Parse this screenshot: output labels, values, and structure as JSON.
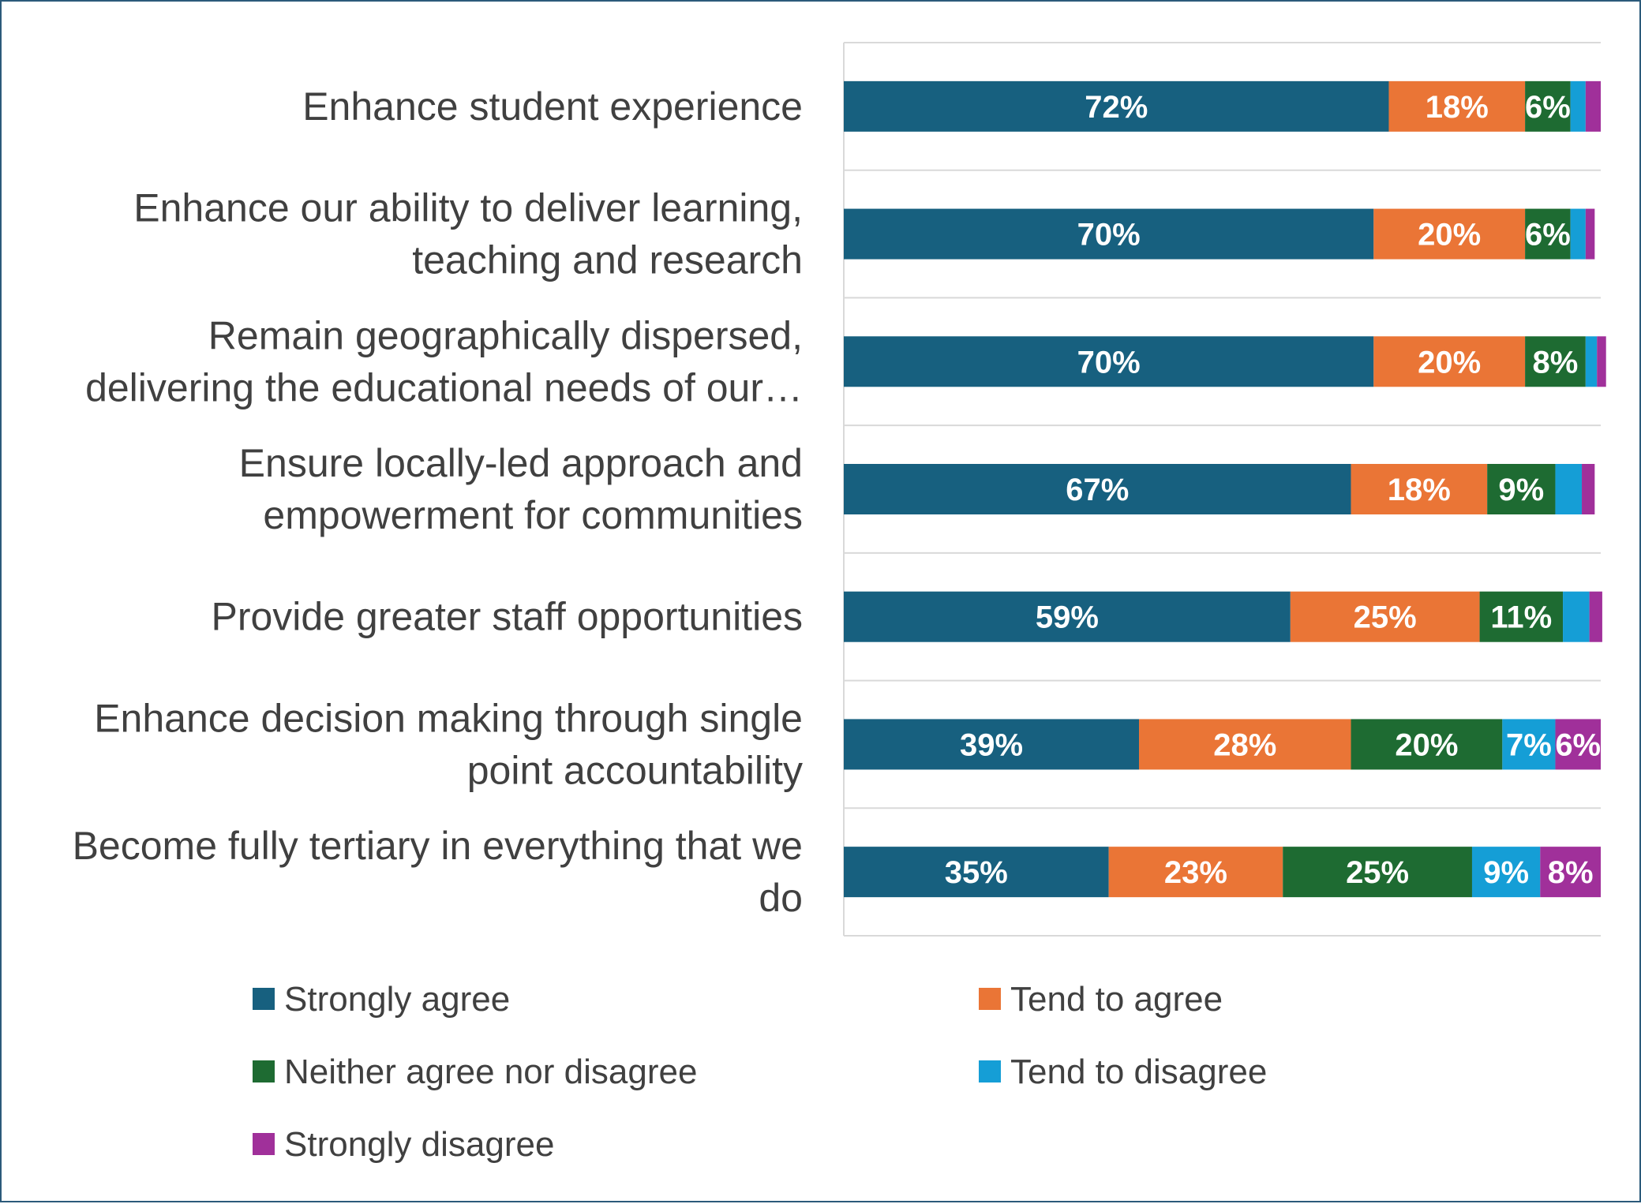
{
  "chart_data": {
    "type": "bar",
    "orientation": "horizontal",
    "stacked": true,
    "categories": [
      [
        "Enhance student experience"
      ],
      [
        "Enhance our ability to deliver learning,",
        "teaching and research"
      ],
      [
        "Remain geographically dispersed,",
        "delivering the educational needs of our…"
      ],
      [
        "Ensure locally-led approach and",
        "empowerment for communities"
      ],
      [
        "Provide greater staff opportunities"
      ],
      [
        "Enhance decision making through single",
        "point accountability"
      ],
      [
        "Become fully tertiary in everything that we",
        "do"
      ]
    ],
    "series": [
      {
        "name": "Strongly agree",
        "color": "#17607f",
        "values": [
          72,
          70,
          70,
          67,
          59,
          39,
          35
        ],
        "labels": [
          "72%",
          "70%",
          "70%",
          "67%",
          "59%",
          "39%",
          "35%"
        ]
      },
      {
        "name": "Tend to agree",
        "color": "#ea7536",
        "values": [
          18,
          20,
          20,
          18,
          25,
          28,
          23
        ],
        "labels": [
          "18%",
          "20%",
          "20%",
          "18%",
          "25%",
          "28%",
          "23%"
        ]
      },
      {
        "name": "Neither agree nor disagree",
        "color": "#1e6b32",
        "values": [
          6,
          6,
          8,
          9,
          11,
          20,
          25
        ],
        "labels": [
          "6%",
          "6%",
          "8%",
          "9%",
          "11%",
          "20%",
          "25%"
        ]
      },
      {
        "name": "Tend to disagree",
        "color": "#159ed6",
        "values": [
          2,
          2,
          1.5,
          3.5,
          3.5,
          7,
          9
        ],
        "labels": [
          "",
          "",
          "",
          "",
          "",
          "7%",
          "9%"
        ]
      },
      {
        "name": "Strongly disagree",
        "color": "#a0309a",
        "values": [
          2,
          1.2,
          1.2,
          1.7,
          1.7,
          6,
          8
        ],
        "labels": [
          "",
          "",
          "",
          "",
          "",
          "6%",
          "8%"
        ]
      }
    ],
    "xlim": [
      0,
      100
    ],
    "grid": true,
    "legend_position": "bottom"
  }
}
